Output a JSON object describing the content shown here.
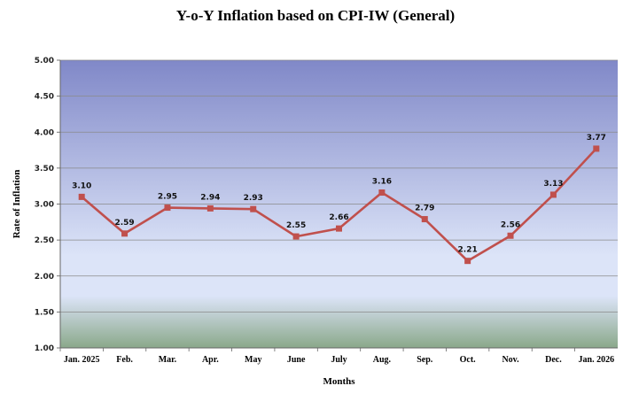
{
  "chart_data": {
    "type": "line",
    "title": "Y-o-Y Inflation based on CPI-IW (General)",
    "xlabel": "Months",
    "ylabel": "Rate of Inflation",
    "categories": [
      "Jan. 2025",
      "Feb.",
      "Mar.",
      "Apr.",
      "May",
      "June",
      "July",
      "Aug.",
      "Sep.",
      "Oct.",
      "Nov.",
      "Dec.",
      "Jan. 2026"
    ],
    "values": [
      3.1,
      2.59,
      2.95,
      2.94,
      2.93,
      2.55,
      2.66,
      3.16,
      2.79,
      2.21,
      2.56,
      3.13,
      3.77
    ],
    "data_labels": [
      "3.10",
      "2.59",
      "2.95",
      "2.94",
      "2.93",
      "2.55",
      "2.66",
      "3.16",
      "2.79",
      "2.21",
      "2.56",
      "3.13",
      "3.77"
    ],
    "ylim": [
      1.0,
      5.0
    ],
    "yticks": [
      "1.00",
      "1.50",
      "2.00",
      "2.50",
      "3.00",
      "3.50",
      "4.00",
      "4.50",
      "5.00"
    ],
    "grid": true,
    "legend": "none",
    "colors": {
      "line": "#c0504d",
      "marker": "#c0504d",
      "plot_top": "#8088c8",
      "plot_mid": "#dce4f8",
      "plot_bottom": "#8aa88a"
    }
  }
}
